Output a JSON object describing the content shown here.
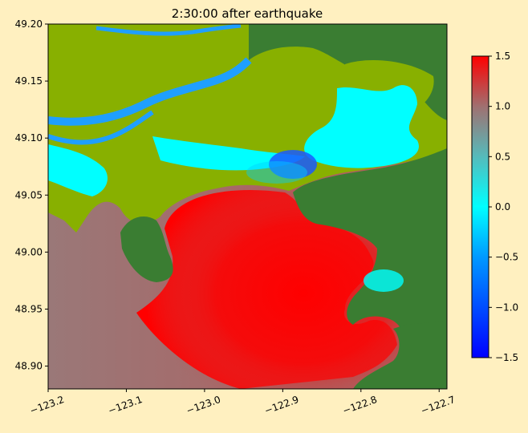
{
  "figure": {
    "background": "#fff0c0"
  },
  "chart_data": {
    "type": "heatmap",
    "title": "2:30:00 after earthquake",
    "xlabel": "",
    "ylabel": "",
    "xlim": [
      -123.2,
      -122.69
    ],
    "ylim": [
      48.88,
      49.2
    ],
    "xticks": [
      -123.2,
      -123.1,
      -123.0,
      -122.9,
      -122.8,
      -122.7
    ],
    "xtick_labels": [
      "−123.2",
      "−123.1",
      "−123.0",
      "−122.9",
      "−122.8",
      "−122.7"
    ],
    "yticks": [
      48.9,
      48.95,
      49.0,
      49.05,
      49.1,
      49.15,
      49.2
    ],
    "ytick_labels": [
      "48.90",
      "48.95",
      "49.00",
      "49.05",
      "49.10",
      "49.15",
      "49.20"
    ],
    "xtick_rotation_deg": 20,
    "colorbar": {
      "vmin": -1.5,
      "vmax": 1.5,
      "ticks": [
        -1.5,
        -1.0,
        -0.5,
        0.0,
        0.5,
        1.0,
        1.5
      ],
      "tick_labels": [
        "−1.5",
        "−1.0",
        "−0.5",
        "0.0",
        "0.5",
        "1.0",
        "1.5"
      ],
      "colormap": [
        {
          "value": -1.5,
          "color": "#0000ff"
        },
        {
          "value": -0.5,
          "color": "#0099ff"
        },
        {
          "value": 0.0,
          "color": "#00ffff"
        },
        {
          "value": 0.5,
          "color": "#55bbbb"
        },
        {
          "value": 1.0,
          "color": "#a07070"
        },
        {
          "value": 1.5,
          "color": "#ff0000"
        }
      ]
    },
    "field_regions": [
      {
        "kind": "land_high",
        "color": "#3a7d32",
        "description": "dark green upland land"
      },
      {
        "kind": "land_low",
        "color": "#88b000",
        "description": "olive-green lowland land"
      },
      {
        "kind": "flooded",
        "color": "#00ffff",
        "value_approx": 0.0,
        "description": "cyan inundated land and river"
      },
      {
        "kind": "river",
        "color": "#1f9fff",
        "value_approx": -0.4,
        "description": "Fraser river channels"
      },
      {
        "kind": "sea_surface_peak",
        "color": "#ff0000",
        "value_approx": 1.5,
        "description": "boundary bay wave crest"
      },
      {
        "kind": "sea_surface_mid",
        "color": "#a07070",
        "value_approx": 1.0,
        "description": "Strait of Georgia surface"
      },
      {
        "kind": "trough",
        "color": "#1a5aff",
        "value_approx": -1.2,
        "description": "draw-down near Mud Bay"
      }
    ]
  }
}
